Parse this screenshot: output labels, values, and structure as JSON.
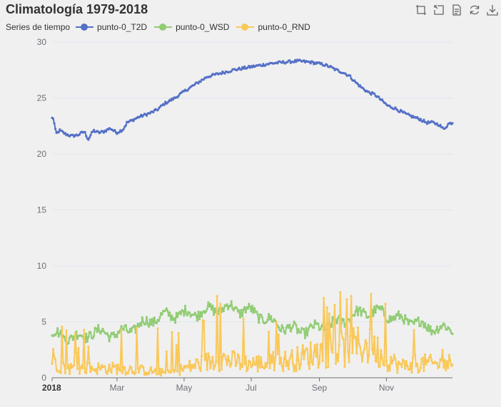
{
  "title": "Climatología 1979-2018",
  "legend": {
    "title": "Series de tiempo",
    "items": [
      "punto-0_T2D",
      "punto-0_WSD",
      "punto-0_RND"
    ]
  },
  "toolbox": [
    "rectangle-zoom-icon",
    "zoom-reset-icon",
    "data-view-icon",
    "restore-icon",
    "save-image-icon"
  ],
  "chart_data": {
    "type": "line",
    "x_range": [
      "2018-01-01",
      "2018-12-31"
    ],
    "x_ticks": [
      "2018",
      "Mar",
      "May",
      "Jul",
      "Sep",
      "Nov"
    ],
    "ylim": [
      0,
      30
    ],
    "y_ticks": [
      0,
      5,
      10,
      15,
      20,
      25,
      30
    ],
    "grid": true,
    "legend_position": "top-left",
    "series": [
      {
        "name": "punto-0_T2D",
        "color": "#5470c6",
        "anchors": [
          [
            1,
            23.2
          ],
          [
            3,
            21.8
          ],
          [
            6,
            22.1
          ],
          [
            10,
            21.8
          ],
          [
            15,
            21.6
          ],
          [
            20,
            21.7
          ],
          [
            25,
            22.0
          ],
          [
            28,
            21.3
          ],
          [
            32,
            22.1
          ],
          [
            36,
            21.9
          ],
          [
            40,
            22.0
          ],
          [
            45,
            22.3
          ],
          [
            50,
            21.9
          ],
          [
            55,
            22.2
          ],
          [
            58,
            22.8
          ],
          [
            62,
            23.0
          ],
          [
            67,
            23.3
          ],
          [
            72,
            23.5
          ],
          [
            77,
            23.7
          ],
          [
            82,
            24.0
          ],
          [
            87,
            24.5
          ],
          [
            95,
            25.0
          ],
          [
            105,
            25.8
          ],
          [
            112,
            26.3
          ],
          [
            120,
            26.9
          ],
          [
            130,
            27.2
          ],
          [
            140,
            27.5
          ],
          [
            150,
            27.7
          ],
          [
            160,
            27.9
          ],
          [
            170,
            28.1
          ],
          [
            180,
            28.2
          ],
          [
            190,
            28.3
          ],
          [
            200,
            28.2
          ],
          [
            210,
            28.0
          ],
          [
            215,
            27.8
          ],
          [
            220,
            27.5
          ],
          [
            225,
            27.3
          ],
          [
            230,
            27.0
          ],
          [
            235,
            26.4
          ],
          [
            240,
            25.9
          ],
          [
            245,
            25.5
          ],
          [
            250,
            25.3
          ],
          [
            255,
            24.8
          ],
          [
            260,
            24.3
          ],
          [
            265,
            24.1
          ],
          [
            270,
            23.8
          ],
          [
            275,
            23.5
          ],
          [
            280,
            23.3
          ],
          [
            285,
            23.1
          ],
          [
            290,
            22.8
          ],
          [
            295,
            22.8
          ],
          [
            300,
            22.6
          ],
          [
            303,
            22.2
          ],
          [
            307,
            22.7
          ],
          [
            310,
            22.8
          ]
        ],
        "noise": 0.25
      },
      {
        "name": "punto-0_WSD",
        "color": "#91cc75",
        "anchors": [
          [
            1,
            4.0
          ],
          [
            8,
            3.6
          ],
          [
            15,
            3.7
          ],
          [
            25,
            3.6
          ],
          [
            30,
            4.1
          ],
          [
            40,
            4.0
          ],
          [
            50,
            3.9
          ],
          [
            60,
            4.3
          ],
          [
            70,
            4.8
          ],
          [
            80,
            5.3
          ],
          [
            90,
            5.6
          ],
          [
            100,
            5.7
          ],
          [
            110,
            5.8
          ],
          [
            120,
            6.0
          ],
          [
            130,
            6.2
          ],
          [
            140,
            6.3
          ],
          [
            145,
            6.0
          ],
          [
            150,
            6.1
          ],
          [
            160,
            5.6
          ],
          [
            170,
            5.0
          ],
          [
            180,
            4.5
          ],
          [
            190,
            4.2
          ],
          [
            200,
            4.3
          ],
          [
            210,
            4.6
          ],
          [
            220,
            4.9
          ],
          [
            225,
            5.1
          ],
          [
            230,
            5.5
          ],
          [
            240,
            5.8
          ],
          [
            250,
            5.9
          ],
          [
            255,
            5.8
          ],
          [
            260,
            5.6
          ],
          [
            270,
            5.2
          ],
          [
            280,
            5.0
          ],
          [
            290,
            4.6
          ],
          [
            300,
            4.4
          ],
          [
            310,
            4.4
          ]
        ],
        "noise": 0.45
      },
      {
        "name": "punto-0_RND",
        "color": "#fac858",
        "anchors": [
          [
            1,
            2.0
          ],
          [
            10,
            1.0
          ],
          [
            30,
            1.0
          ],
          [
            50,
            1.0
          ],
          [
            70,
            0.8
          ],
          [
            90,
            0.5
          ],
          [
            110,
            1.3
          ],
          [
            130,
            2.0
          ],
          [
            150,
            1.5
          ],
          [
            170,
            1.5
          ],
          [
            190,
            2.0
          ],
          [
            210,
            2.8
          ],
          [
            230,
            3.0
          ],
          [
            240,
            3.5
          ],
          [
            250,
            3.0
          ],
          [
            260,
            2.0
          ],
          [
            270,
            1.2
          ],
          [
            280,
            1.5
          ],
          [
            290,
            1.5
          ],
          [
            300,
            1.4
          ],
          [
            310,
            1.6
          ]
        ],
        "noise": 1.0,
        "spike_prob": 0.07,
        "spikes": [
          [
            128,
            7.3
          ],
          [
            130,
            6.6
          ],
          [
            219,
            6.5
          ],
          [
            228,
            7.0
          ],
          [
            232,
            7.3
          ],
          [
            247,
            7.5
          ],
          [
            258,
            6.6
          ]
        ]
      }
    ]
  }
}
